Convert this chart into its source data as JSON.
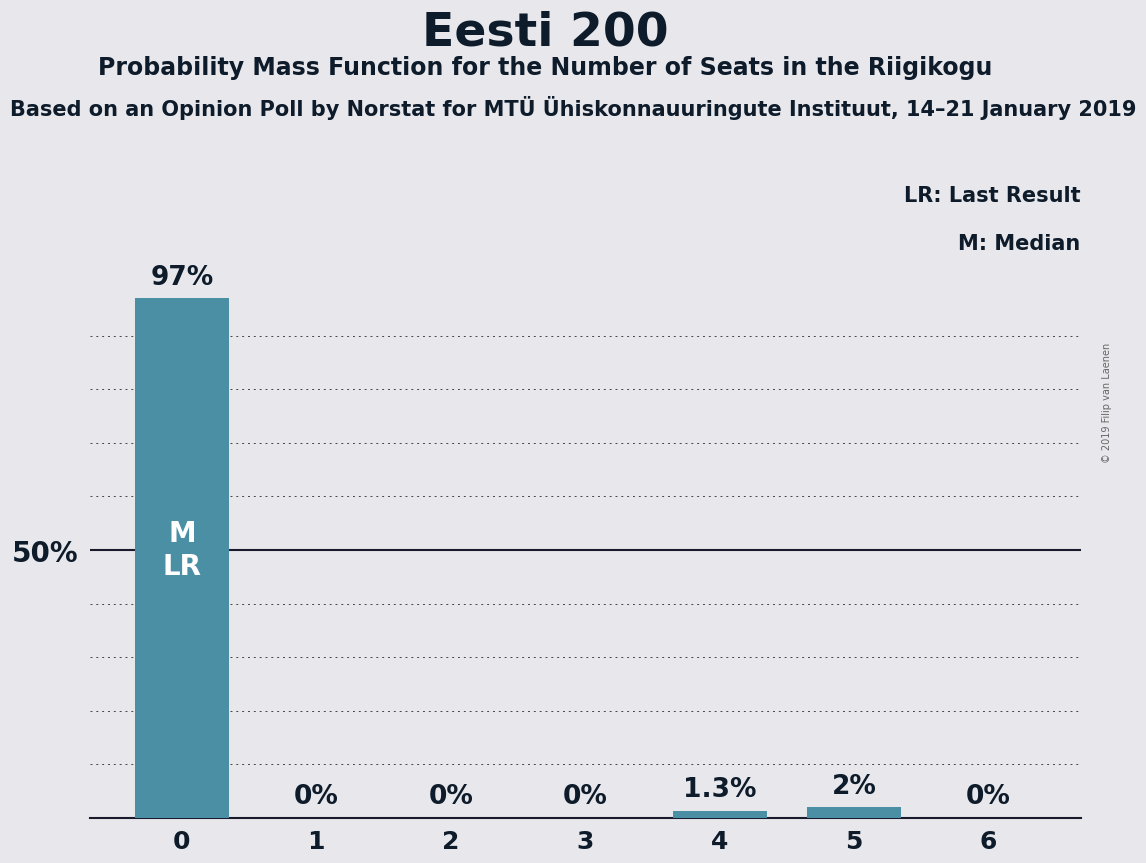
{
  "title": "Eesti 200",
  "subtitle": "Probability Mass Function for the Number of Seats in the Riigikogu",
  "source_line": "Based on an Opinion Poll by Norstat for MTÜ Ühiskonnauuringute Instituut, 14–21 January 2019",
  "copyright": "© 2019 Filip van Laenen",
  "categories": [
    0,
    1,
    2,
    3,
    4,
    5,
    6
  ],
  "values": [
    97.0,
    0.0,
    0.0,
    0.0,
    1.3,
    2.0,
    0.0
  ],
  "value_labels": [
    "97%",
    "0%",
    "0%",
    "0%",
    "1.3%",
    "2%",
    "0%"
  ],
  "bar_color": "#4a8fa3",
  "background_color": "#e8e8ec",
  "text_color": "#0d1b2a",
  "bar_text_color": "#ffffff",
  "ylim": [
    0,
    100
  ],
  "yticks": [
    10,
    20,
    30,
    40,
    50,
    60,
    70,
    80,
    90
  ],
  "ylabel_50": "50%",
  "legend_lr": "LR: Last Result",
  "legend_m": "M: Median",
  "title_fontsize": 34,
  "subtitle_fontsize": 17,
  "source_fontsize": 15,
  "axis_fontsize": 18,
  "bar_label_fontsize": 19,
  "ylabel_fontsize": 20,
  "inside_bar_fontsize": 20,
  "legend_fontsize": 15,
  "copyright_fontsize": 7
}
